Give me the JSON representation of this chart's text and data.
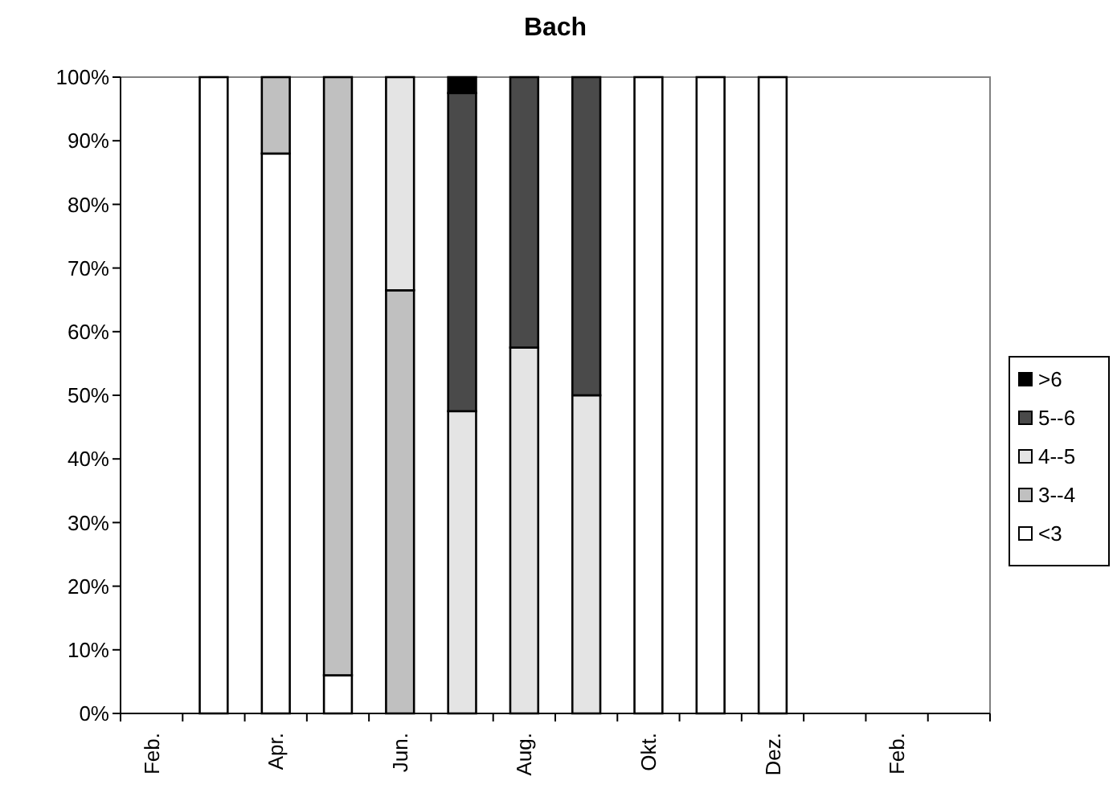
{
  "chart_data": {
    "type": "bar",
    "title": "Bach",
    "stacked": true,
    "legend": "right",
    "grid": false,
    "categories": [
      "Feb.",
      null,
      "Apr.",
      null,
      "Jun.",
      null,
      "Aug.",
      null,
      "Okt.",
      null,
      "Dez.",
      null,
      "Feb.",
      null
    ],
    "ylim": [
      0,
      100
    ],
    "yticks": [
      {
        "value": 0,
        "label": "0%"
      },
      {
        "value": 10,
        "label": "10%"
      },
      {
        "value": 20,
        "label": "20%"
      },
      {
        "value": 30,
        "label": "30%"
      },
      {
        "value": 40,
        "label": "40%"
      },
      {
        "value": 50,
        "label": "50%"
      },
      {
        "value": 60,
        "label": "60%"
      },
      {
        "value": 70,
        "label": "70%"
      },
      {
        "value": 80,
        "label": "80%"
      },
      {
        "value": 90,
        "label": "90%"
      },
      {
        "value": 100,
        "label": "100%"
      }
    ],
    "series": [
      {
        "name": "<3",
        "color": "#ffffff",
        "values": [
          null,
          100,
          88,
          6,
          0,
          0,
          0,
          0,
          100,
          100,
          100,
          null,
          null,
          null
        ]
      },
      {
        "name": "3--4",
        "color": "#c0c0c0",
        "values": [
          null,
          0,
          12,
          94,
          66.5,
          0,
          0,
          0,
          0,
          0,
          0,
          null,
          null,
          null
        ]
      },
      {
        "name": "4--5",
        "color": "#e4e4e4",
        "values": [
          null,
          0,
          0,
          0,
          33.5,
          47.5,
          57.5,
          50,
          0,
          0,
          0,
          null,
          null,
          null
        ]
      },
      {
        "name": "5--6",
        "color": "#4a4a4a",
        "values": [
          null,
          0,
          0,
          0,
          0,
          50,
          42.5,
          50,
          0,
          0,
          0,
          null,
          null,
          null
        ]
      },
      {
        "name": ">6",
        "color": "#000000",
        "values": [
          null,
          0,
          0,
          0,
          0,
          2.5,
          0,
          0,
          0,
          0,
          0,
          null,
          null,
          null
        ]
      }
    ]
  }
}
